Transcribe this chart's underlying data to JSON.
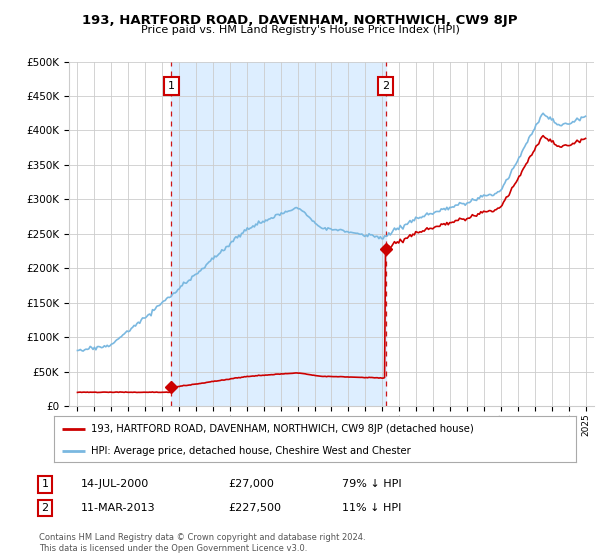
{
  "title": "193, HARTFORD ROAD, DAVENHAM, NORTHWICH, CW9 8JP",
  "subtitle": "Price paid vs. HM Land Registry's House Price Index (HPI)",
  "ylabel_ticks": [
    "£0",
    "£50K",
    "£100K",
    "£150K",
    "£200K",
    "£250K",
    "£300K",
    "£350K",
    "£400K",
    "£450K",
    "£500K"
  ],
  "ytick_values": [
    0,
    50000,
    100000,
    150000,
    200000,
    250000,
    300000,
    350000,
    400000,
    450000,
    500000
  ],
  "ylim": [
    0,
    500000
  ],
  "xlim_start": 1994.5,
  "xlim_end": 2025.5,
  "sale1_year": 2000.54,
  "sale1_price": 27000,
  "sale2_year": 2013.19,
  "sale2_price": 227500,
  "hpi_color": "#7ab8e0",
  "price_color": "#cc0000",
  "shade_color": "#ddeeff",
  "legend_line1": "193, HARTFORD ROAD, DAVENHAM, NORTHWICH, CW9 8JP (detached house)",
  "legend_line2": "HPI: Average price, detached house, Cheshire West and Chester",
  "table_row1": [
    "1",
    "14-JUL-2000",
    "£27,000",
    "79% ↓ HPI"
  ],
  "table_row2": [
    "2",
    "11-MAR-2013",
    "£227,500",
    "11% ↓ HPI"
  ],
  "footnote": "Contains HM Land Registry data © Crown copyright and database right 2024.\nThis data is licensed under the Open Government Licence v3.0.",
  "background_color": "#ffffff",
  "grid_color": "#cccccc"
}
